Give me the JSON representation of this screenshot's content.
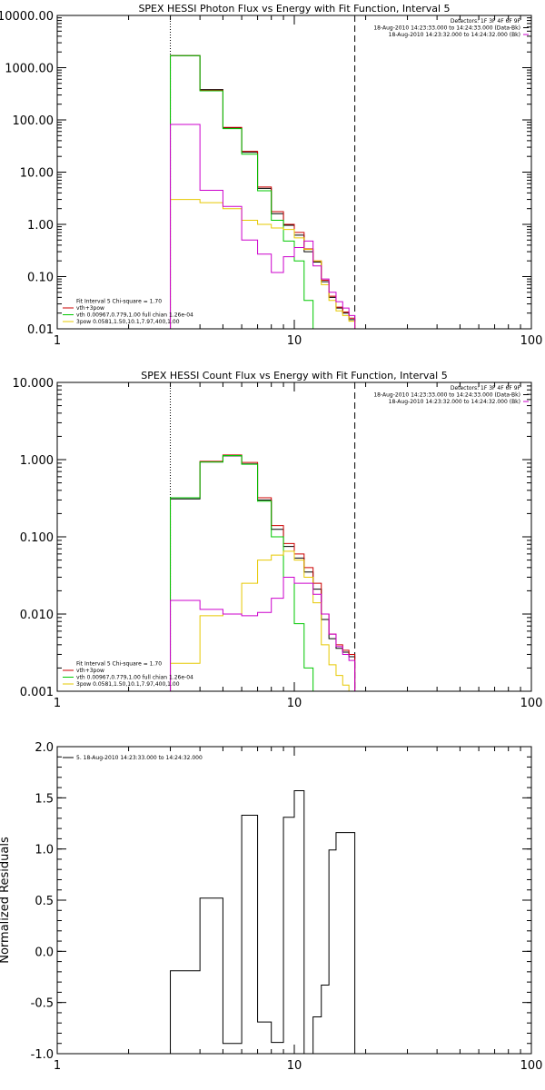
{
  "chart_data": [
    {
      "type": "line",
      "title": "SPEX HESSI Photon Flux vs Energy with Fit Function, Interval 5",
      "xscale": "log",
      "yscale": "log",
      "xlim": [
        1,
        100
      ],
      "ylim": [
        0.01,
        10000
      ],
      "xticks": [
        1,
        10,
        100
      ],
      "xtick_labels": [
        "1",
        "10",
        "100"
      ],
      "yticks": [
        0.01,
        0.1,
        1,
        10,
        100,
        1000,
        10000
      ],
      "ytick_labels": [
        "0.01",
        "0.10",
        "1.00",
        "10.00",
        "100.00",
        "1000.00",
        "10000.00"
      ],
      "vlines": [
        {
          "x": 3.0,
          "style": "dotted"
        },
        {
          "x": 18.0,
          "style": "dashed"
        }
      ],
      "header_right": [
        {
          "text": "Detectors: 1F 3F 4F 6F 9F",
          "color": "#000000"
        },
        {
          "text": "18-Aug-2010 14:23:33.000 to 14:24:33.000 (Data-Bk)",
          "color": "#000000"
        },
        {
          "text": "18-Aug-2010 14:23:32.000 to 14:24:32.000 (Bk)",
          "color": "#cc00cc"
        }
      ],
      "legend_left": [
        {
          "text": "Fit Interval  5    Chi-square = 1.70",
          "color": "#000000"
        },
        {
          "text": "vth+3pow",
          "color": "#cc0000"
        },
        {
          "text": "vth 0.00967,0.779,1.00   full chian 1.26e-04",
          "color": "#00c800"
        },
        {
          "text": "3pow 0.0581,1.50,10.1,7.97,400,1.00",
          "color": "#e6c800"
        }
      ],
      "bin_edges": [
        3.0,
        4.0,
        5.0,
        6.0,
        7.0,
        8.0,
        9.0,
        10.0,
        11.0,
        12.0,
        13.0,
        14.0,
        15.0,
        16.0,
        17.0,
        18.0
      ],
      "series": [
        {
          "name": "Data-Bk",
          "color": "#000000",
          "values": [
            1700,
            380,
            70,
            24,
            4.9,
            1.6,
            0.96,
            0.62,
            0.3,
            0.19,
            0.08,
            0.04,
            0.025,
            0.02,
            0.015
          ]
        },
        {
          "name": "vth+3pow",
          "color": "#cc0000",
          "values": [
            1700,
            370,
            72,
            25,
            5.2,
            1.75,
            1.0,
            0.7,
            0.34,
            0.2,
            0.085,
            0.042,
            0.026,
            0.021,
            0.016
          ]
        },
        {
          "name": "vth",
          "color": "#00c800",
          "values": [
            1700,
            360,
            68,
            22,
            4.4,
            1.2,
            0.48,
            0.2,
            0.035,
            0.009
          ]
        },
        {
          "name": "3pow",
          "color": "#e6c800",
          "values": [
            3.0,
            2.6,
            2.0,
            1.2,
            1.0,
            0.85,
            0.8,
            0.55,
            0.33,
            0.2,
            0.07,
            0.035,
            0.022,
            0.018,
            0.014
          ]
        },
        {
          "name": "Bk",
          "color": "#cc00cc",
          "values": [
            82,
            4.5,
            2.2,
            0.5,
            0.27,
            0.12,
            0.24,
            0.36,
            0.48,
            0.16,
            0.09,
            0.05,
            0.033,
            0.025,
            0.018
          ]
        }
      ]
    },
    {
      "type": "line",
      "title": "SPEX HESSI Count Flux vs Energy with Fit Function, Interval 5",
      "xscale": "log",
      "yscale": "log",
      "xlim": [
        1,
        100
      ],
      "ylim": [
        0.001,
        10
      ],
      "xticks": [
        1,
        10,
        100
      ],
      "xtick_labels": [
        "1",
        "10",
        "100"
      ],
      "yticks": [
        0.001,
        0.01,
        0.1,
        1,
        10
      ],
      "ytick_labels": [
        "0.001",
        "0.010",
        "0.100",
        "1.000",
        "10.000"
      ],
      "vlines": [
        {
          "x": 3.0,
          "style": "dotted"
        },
        {
          "x": 18.0,
          "style": "dashed"
        }
      ],
      "header_right": [
        {
          "text": "Detectors: 1F 3F 4F 6F 9F",
          "color": "#000000"
        },
        {
          "text": "18-Aug-2010 14:23:33.000 to 14:24:33.000 (Data-Bk)",
          "color": "#000000"
        },
        {
          "text": "18-Aug-2010 14:23:32.000 to 14:24:32.000 (Bk)",
          "color": "#cc00cc"
        }
      ],
      "legend_left": [
        {
          "text": "Fit Interval  5    Chi-square = 1.70",
          "color": "#000000"
        },
        {
          "text": "vth+3pow",
          "color": "#cc0000"
        },
        {
          "text": "vth 0.00967,0.779,1.00   full chian 1.26e-04",
          "color": "#00c800"
        },
        {
          "text": "3pow 0.0581,1.50,10.1,7.97,400,1.00",
          "color": "#e6c800"
        }
      ],
      "bin_edges": [
        3.0,
        4.0,
        5.0,
        6.0,
        7.0,
        8.0,
        9.0,
        10.0,
        11.0,
        12.0,
        13.0,
        14.0,
        15.0,
        16.0,
        17.0,
        18.0
      ],
      "series": [
        {
          "name": "Data-Bk",
          "color": "#000000",
          "values": [
            0.31,
            0.93,
            1.12,
            0.88,
            0.3,
            0.125,
            0.075,
            0.053,
            0.035,
            0.021,
            0.0085,
            0.0048,
            0.0036,
            0.0032,
            0.0028
          ]
        },
        {
          "name": "vth+3pow",
          "color": "#cc0000",
          "values": [
            0.32,
            0.95,
            1.15,
            0.92,
            0.32,
            0.14,
            0.082,
            0.06,
            0.04,
            0.025,
            0.01,
            0.0055,
            0.004,
            0.0034,
            0.003
          ]
        },
        {
          "name": "vth",
          "color": "#00c800",
          "values": [
            0.32,
            0.93,
            1.13,
            0.87,
            0.29,
            0.1,
            0.03,
            0.0075,
            0.002,
            0.0009
          ]
        },
        {
          "name": "3pow",
          "color": "#e6c800",
          "values": [
            0.0023,
            0.0095,
            0.01,
            0.025,
            0.05,
            0.058,
            0.065,
            0.05,
            0.03,
            0.014,
            0.004,
            0.0022,
            0.0016,
            0.0012,
            0.0009
          ]
        },
        {
          "name": "Bk",
          "color": "#cc00cc",
          "values": [
            0.015,
            0.0115,
            0.01,
            0.0095,
            0.0105,
            0.016,
            0.03,
            0.025,
            0.025,
            0.018,
            0.01,
            0.0055,
            0.0038,
            0.003,
            0.0025
          ]
        }
      ]
    },
    {
      "type": "line",
      "title": "",
      "ylabel": "Normalized Residuals",
      "xscale": "log",
      "yscale": "linear",
      "xlim": [
        1,
        100
      ],
      "ylim": [
        -1.0,
        2.0
      ],
      "xticks": [
        1,
        10,
        100
      ],
      "xtick_labels": [
        "1",
        "10",
        "100"
      ],
      "yticks": [
        -1.0,
        -0.5,
        0.0,
        0.5,
        1.0,
        1.5,
        2.0
      ],
      "ytick_labels": [
        "-1.0",
        "-0.5",
        "0.0",
        "0.5",
        "1.0",
        "1.5",
        "2.0"
      ],
      "legend_left": [
        {
          "text": "5. 18-Aug-2010 14:23:33.000 to 14:24:32.000",
          "color": "#000000"
        }
      ],
      "bin_edges": [
        3.0,
        4.0,
        5.0,
        6.0,
        7.0,
        8.0,
        9.0,
        10.0,
        11.0,
        12.0,
        13.0,
        14.0,
        15.0,
        16.0,
        17.0,
        18.0
      ],
      "series": [
        {
          "name": "",
          "color": "#000000",
          "values": [
            -0.19,
            0.52,
            -0.9,
            1.33,
            -0.69,
            -0.89,
            1.31,
            1.57,
            -1.0,
            -0.64,
            -0.33,
            0.99,
            1.16,
            1.16,
            1.16
          ]
        }
      ]
    }
  ]
}
